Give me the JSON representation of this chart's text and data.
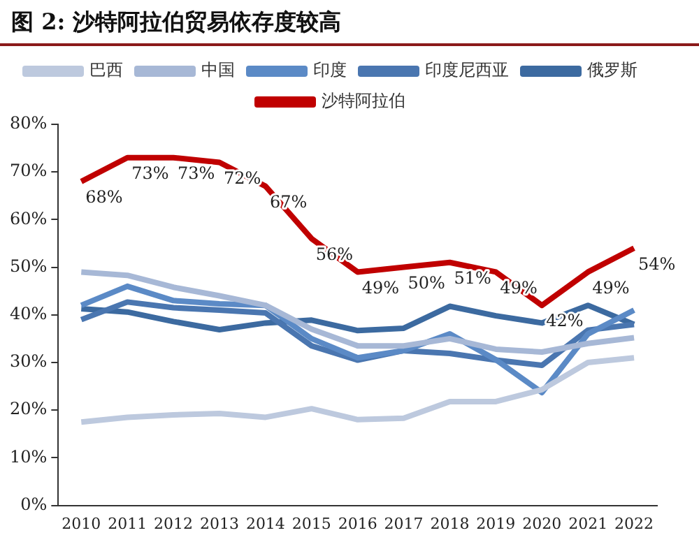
{
  "chart_data": {
    "type": "line",
    "title": "图 2: 沙特阿拉伯贸易依存度较高",
    "categories": [
      "2010",
      "2011",
      "2012",
      "2013",
      "2014",
      "2015",
      "2016",
      "2017",
      "2018",
      "2019",
      "2020",
      "2021",
      "2022"
    ],
    "series": [
      {
        "name": "巴西",
        "color": "#bdc9de",
        "values": [
          17.5,
          18.5,
          19,
          19.3,
          18.5,
          20.3,
          18,
          18.3,
          21.8,
          21.8,
          24.3,
          30,
          31
        ]
      },
      {
        "name": "中国",
        "color": "#a7b8d6",
        "values": [
          49,
          48.3,
          45.8,
          44,
          42,
          37,
          33.5,
          33.5,
          35,
          32.8,
          32.2,
          34,
          35.2
        ]
      },
      {
        "name": "印度",
        "color": "#5b8ac6",
        "values": [
          42,
          46,
          43,
          42.3,
          42,
          35,
          31,
          32.5,
          36,
          30.6,
          23.7,
          36,
          41
        ]
      },
      {
        "name": "印度尼西亚",
        "color": "#4a76b0",
        "values": [
          39,
          42.7,
          41.5,
          41,
          40.4,
          33.5,
          30.5,
          32.5,
          31.9,
          30.5,
          29.4,
          36.8,
          38
        ]
      },
      {
        "name": "俄罗斯",
        "color": "#3c6aa0",
        "values": [
          41.3,
          40.6,
          38.6,
          36.9,
          38.3,
          38.9,
          36.7,
          37.2,
          41.8,
          39.8,
          38.3,
          42,
          38
        ]
      },
      {
        "name": "沙特阿拉伯",
        "color": "#c00000",
        "values": [
          68,
          73,
          73,
          72,
          67,
          56,
          49,
          50,
          51,
          49,
          42,
          49,
          54
        ],
        "value_labels": [
          "68%",
          "73%",
          "73%",
          "72%",
          "67%",
          "56%",
          "49%",
          "50%",
          "51%",
          "49%",
          "42%",
          "49%",
          "54%"
        ]
      }
    ],
    "ylim": [
      0,
      80
    ],
    "yticks": [
      {
        "value": 0,
        "label": "0%"
      },
      {
        "value": 10,
        "label": "10%"
      },
      {
        "value": 20,
        "label": "20%"
      },
      {
        "value": 30,
        "label": "30%"
      },
      {
        "value": 40,
        "label": "40%"
      },
      {
        "value": 50,
        "label": "50%"
      },
      {
        "value": 60,
        "label": "60%"
      },
      {
        "value": 70,
        "label": "70%"
      },
      {
        "value": 80,
        "label": "80%"
      }
    ],
    "grid": false,
    "legend": "top",
    "marker": "none",
    "line_style": "solid"
  }
}
